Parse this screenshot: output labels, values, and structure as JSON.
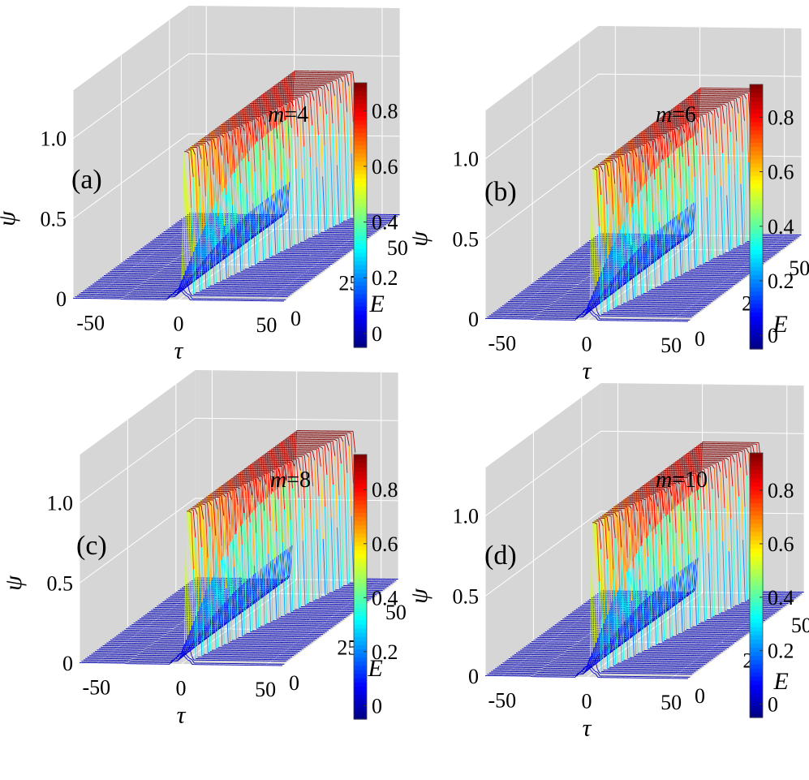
{
  "chart_data": [
    {
      "type": "surface",
      "panel_label": "(a)",
      "annotation": {
        "var": "m",
        "text": "=4"
      },
      "m": 4,
      "xlabel": "τ",
      "ylabel": "E",
      "zlabel": "ψ",
      "xlim": [
        -60,
        60
      ],
      "ylim": [
        0,
        60
      ],
      "zlim": [
        0,
        1.3
      ],
      "x_ticks": [
        "-50",
        "0",
        "50"
      ],
      "y_ticks": [
        "0",
        "25",
        "50"
      ],
      "z_ticks": [
        "0",
        "0.5",
        "1.0"
      ],
      "colorbar_ticks": [
        "0",
        "0.2",
        "0.4",
        "0.6",
        "0.8"
      ],
      "colorbar_range": [
        -0.05,
        0.9
      ],
      "profile": {
        "E": [
          0,
          10,
          20,
          30,
          40,
          50,
          60
        ],
        "peak_psi": [
          0.05,
          0.35,
          0.6,
          0.78,
          0.88,
          0.9,
          0.9
        ],
        "plateau_psi": 0.9
      },
      "colormap": "jet",
      "grid": true
    },
    {
      "type": "surface",
      "panel_label": "(b)",
      "annotation": {
        "var": "m",
        "text": "=6"
      },
      "m": 6,
      "xlabel": "τ",
      "ylabel": "E",
      "zlabel": "ψ",
      "xlim": [
        -60,
        60
      ],
      "ylim": [
        0,
        60
      ],
      "zlim": [
        0,
        1.3
      ],
      "x_ticks": [
        "-50",
        "0",
        "50"
      ],
      "y_ticks": [
        "0",
        "25",
        "50"
      ],
      "z_ticks": [
        "0",
        "0.5",
        "1.0"
      ],
      "colorbar_ticks": [
        "0",
        "0.2",
        "0.4",
        "0.6",
        "0.8"
      ],
      "colorbar_range": [
        -0.05,
        0.92
      ],
      "profile": {
        "E": [
          0,
          10,
          20,
          30,
          40,
          50,
          60
        ],
        "peak_psi": [
          0.05,
          0.35,
          0.6,
          0.8,
          0.9,
          0.92,
          0.92
        ],
        "plateau_psi": 0.92
      },
      "colormap": "jet",
      "grid": true
    },
    {
      "type": "surface",
      "panel_label": "(c)",
      "annotation": {
        "var": "m",
        "text": "=8"
      },
      "m": 8,
      "xlabel": "τ",
      "ylabel": "E",
      "zlabel": "ψ",
      "xlim": [
        -60,
        60
      ],
      "ylim": [
        0,
        60
      ],
      "zlim": [
        0,
        1.3
      ],
      "x_ticks": [
        "-50",
        "0",
        "50"
      ],
      "y_ticks": [
        "0",
        "25",
        "50"
      ],
      "z_ticks": [
        "0",
        "0.5",
        "1.0"
      ],
      "colorbar_ticks": [
        "0",
        "0.2",
        "0.4",
        "0.6",
        "0.8"
      ],
      "colorbar_range": [
        -0.05,
        0.93
      ],
      "profile": {
        "E": [
          0,
          10,
          20,
          30,
          40,
          50,
          60
        ],
        "peak_psi": [
          0.05,
          0.35,
          0.62,
          0.82,
          0.9,
          0.93,
          0.93
        ],
        "plateau_psi": 0.93
      },
      "colormap": "jet",
      "grid": true
    },
    {
      "type": "surface",
      "panel_label": "(d)",
      "annotation": {
        "var": "m",
        "text": "=10"
      },
      "m": 10,
      "xlabel": "τ",
      "ylabel": "E",
      "zlabel": "ψ",
      "xlim": [
        -60,
        60
      ],
      "ylim": [
        0,
        60
      ],
      "zlim": [
        0,
        1.3
      ],
      "x_ticks": [
        "-50",
        "0",
        "50"
      ],
      "y_ticks": [
        "0",
        "25",
        "50"
      ],
      "z_ticks": [
        "0",
        "0.5",
        "1.0"
      ],
      "colorbar_ticks": [
        "0",
        "0.2",
        "0.4",
        "0.6",
        "0.8"
      ],
      "colorbar_range": [
        -0.05,
        0.94
      ],
      "profile": {
        "E": [
          0,
          10,
          20,
          30,
          40,
          50,
          60
        ],
        "peak_psi": [
          0.05,
          0.36,
          0.63,
          0.83,
          0.91,
          0.94,
          0.94
        ],
        "plateau_psi": 0.94
      },
      "colormap": "jet",
      "grid": true
    }
  ]
}
